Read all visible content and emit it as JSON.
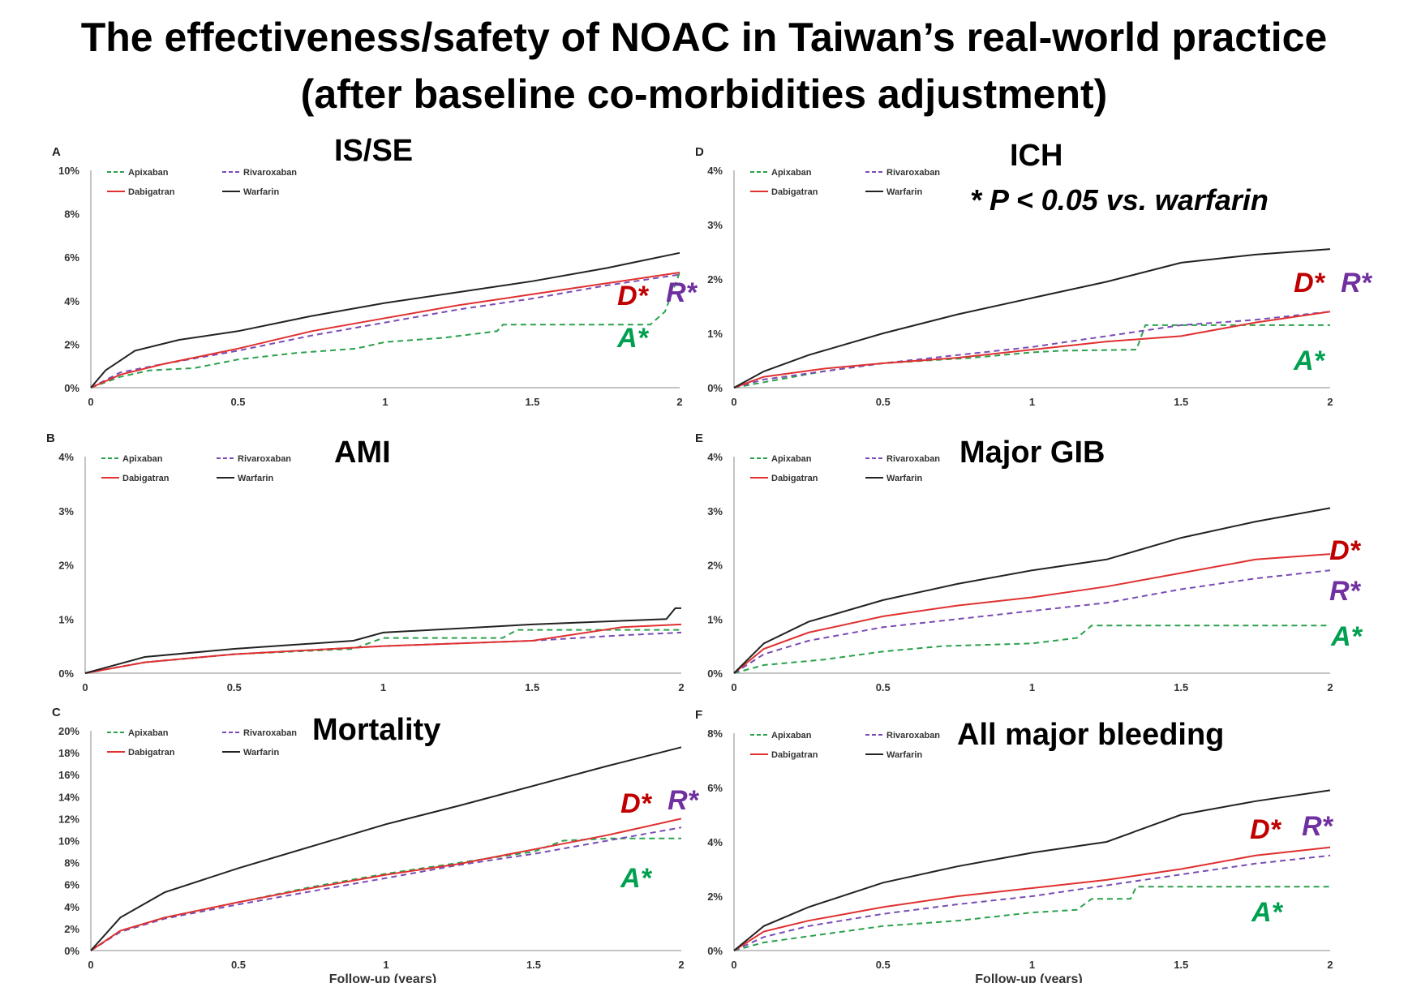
{
  "title_line1": "The effectiveness/safety of  NOAC in Taiwan’s real-world practice",
  "title_line2": "(after baseline co-morbidities adjustment)",
  "pvalue_note": "* P < 0.05 vs. warfarin",
  "xlabel": "Follow-up (years)",
  "colors": {
    "apixaban": "#2aa14b",
    "rivaroxaban": "#7a4bb5",
    "dabigatran": "#e03030",
    "warfarin": "#222222",
    "D_label": "#c00000",
    "R_label": "#7030a0",
    "A_label": "#00a050"
  },
  "chart_data": [
    {
      "type": "line",
      "panel_letter": "A",
      "title": "IS/SE",
      "x_ticks": [
        "0",
        "0.5",
        "1",
        "1.5",
        "2"
      ],
      "xlim": [
        0,
        2
      ],
      "y_ticks": [
        "0%",
        "2%",
        "4%",
        "6%",
        "8%",
        "10%"
      ],
      "ylim": [
        0,
        10
      ],
      "legend": [
        "Apixaban",
        "Rivaroxaban",
        "Dabigatran",
        "Warfarin"
      ],
      "annotations": [
        "D*",
        "R*",
        "A*"
      ],
      "series": [
        {
          "name": "Apixaban",
          "x": [
            0,
            0.1,
            0.2,
            0.35,
            0.5,
            0.7,
            0.9,
            1.0,
            1.2,
            1.38,
            1.4,
            1.7,
            1.9,
            1.95,
            2.0
          ],
          "y": [
            0,
            0.5,
            0.8,
            0.9,
            1.3,
            1.6,
            1.8,
            2.1,
            2.3,
            2.6,
            2.9,
            2.9,
            2.9,
            3.5,
            5.3
          ]
        },
        {
          "name": "Rivaroxaban",
          "x": [
            0,
            0.1,
            0.25,
            0.5,
            0.75,
            1.0,
            1.25,
            1.5,
            1.75,
            2.0
          ],
          "y": [
            0,
            0.7,
            1.1,
            1.7,
            2.4,
            3.0,
            3.6,
            4.1,
            4.7,
            5.2
          ]
        },
        {
          "name": "Dabigatran",
          "x": [
            0,
            0.1,
            0.25,
            0.5,
            0.75,
            1.0,
            1.25,
            1.5,
            1.75,
            2.0
          ],
          "y": [
            0,
            0.6,
            1.1,
            1.8,
            2.6,
            3.2,
            3.8,
            4.3,
            4.8,
            5.3
          ]
        },
        {
          "name": "Warfarin",
          "x": [
            0,
            0.05,
            0.15,
            0.3,
            0.5,
            0.75,
            1.0,
            1.25,
            1.5,
            1.75,
            2.0
          ],
          "y": [
            0,
            0.8,
            1.7,
            2.2,
            2.6,
            3.3,
            3.9,
            4.4,
            4.9,
            5.5,
            6.2
          ]
        }
      ]
    },
    {
      "type": "line",
      "panel_letter": "D",
      "title": "ICH",
      "x_ticks": [
        "0",
        "0.5",
        "1",
        "1.5",
        "2"
      ],
      "xlim": [
        0,
        2
      ],
      "y_ticks": [
        "0%",
        "1%",
        "2%",
        "3%",
        "4%"
      ],
      "ylim": [
        0,
        4
      ],
      "legend": [
        "Apixaban",
        "Rivaroxaban",
        "Dabigatran",
        "Warfarin"
      ],
      "annotations": [
        "D*",
        "R*",
        "A*"
      ],
      "series": [
        {
          "name": "Apixaban",
          "x": [
            0,
            0.1,
            0.3,
            0.5,
            0.8,
            1.0,
            1.1,
            1.35,
            1.38,
            1.6,
            1.8,
            2.0
          ],
          "y": [
            0,
            0.1,
            0.3,
            0.45,
            0.55,
            0.65,
            0.68,
            0.7,
            1.15,
            1.15,
            1.15,
            1.15
          ]
        },
        {
          "name": "Rivaroxaban",
          "x": [
            0,
            0.1,
            0.3,
            0.5,
            0.75,
            1.0,
            1.25,
            1.5,
            1.75,
            2.0
          ],
          "y": [
            0,
            0.15,
            0.3,
            0.45,
            0.6,
            0.75,
            0.95,
            1.15,
            1.25,
            1.4
          ]
        },
        {
          "name": "Dabigatran",
          "x": [
            0,
            0.1,
            0.3,
            0.5,
            0.75,
            1.0,
            1.25,
            1.5,
            1.75,
            2.0
          ],
          "y": [
            0,
            0.2,
            0.35,
            0.45,
            0.55,
            0.7,
            0.85,
            0.95,
            1.2,
            1.4
          ]
        },
        {
          "name": "Warfarin",
          "x": [
            0,
            0.1,
            0.25,
            0.5,
            0.75,
            1.0,
            1.25,
            1.5,
            1.75,
            2.0
          ],
          "y": [
            0,
            0.3,
            0.6,
            1.0,
            1.35,
            1.65,
            1.95,
            2.3,
            2.45,
            2.55
          ]
        }
      ]
    },
    {
      "type": "line",
      "panel_letter": "B",
      "title": "AMI",
      "x_ticks": [
        "0",
        "0.5",
        "1",
        "1.5",
        "2"
      ],
      "xlim": [
        0,
        2
      ],
      "y_ticks": [
        "0%",
        "1%",
        "2%",
        "3%",
        "4%"
      ],
      "ylim": [
        0,
        4
      ],
      "legend": [
        "Apixaban",
        "Rivaroxaban",
        "Dabigatran",
        "Warfarin"
      ],
      "annotations": [],
      "series": [
        {
          "name": "Apixaban",
          "x": [
            0,
            0.2,
            0.5,
            0.9,
            1.0,
            1.4,
            1.45,
            1.8,
            2.0
          ],
          "y": [
            0,
            0.2,
            0.35,
            0.45,
            0.65,
            0.65,
            0.8,
            0.8,
            0.8
          ]
        },
        {
          "name": "Rivaroxaban",
          "x": [
            0,
            0.2,
            0.5,
            1.0,
            1.5,
            1.8,
            2.0
          ],
          "y": [
            0,
            0.2,
            0.35,
            0.5,
            0.6,
            0.7,
            0.75
          ]
        },
        {
          "name": "Dabigatran",
          "x": [
            0,
            0.2,
            0.5,
            1.0,
            1.5,
            1.8,
            2.0
          ],
          "y": [
            0,
            0.2,
            0.35,
            0.5,
            0.6,
            0.85,
            0.9
          ]
        },
        {
          "name": "Warfarin",
          "x": [
            0,
            0.2,
            0.5,
            0.9,
            1.0,
            1.5,
            1.95,
            1.98,
            2.0
          ],
          "y": [
            0,
            0.3,
            0.45,
            0.6,
            0.75,
            0.9,
            1.0,
            1.2,
            1.2
          ]
        }
      ]
    },
    {
      "type": "line",
      "panel_letter": "E",
      "title": "Major GIB",
      "x_ticks": [
        "0",
        "0.5",
        "1",
        "1.5",
        "2"
      ],
      "xlim": [
        0,
        2
      ],
      "y_ticks": [
        "0%",
        "1%",
        "2%",
        "3%",
        "4%"
      ],
      "ylim": [
        0,
        4
      ],
      "legend": [
        "Apixaban",
        "Rivaroxaban",
        "Dabigatran",
        "Warfarin"
      ],
      "annotations": [
        "D*",
        "R*",
        "A*"
      ],
      "series": [
        {
          "name": "Apixaban",
          "x": [
            0,
            0.1,
            0.3,
            0.5,
            0.7,
            1.0,
            1.15,
            1.2,
            1.5,
            2.0
          ],
          "y": [
            0,
            0.15,
            0.25,
            0.4,
            0.5,
            0.55,
            0.65,
            0.88,
            0.88,
            0.88
          ]
        },
        {
          "name": "Rivaroxaban",
          "x": [
            0,
            0.1,
            0.25,
            0.5,
            0.75,
            1.0,
            1.25,
            1.5,
            1.75,
            2.0
          ],
          "y": [
            0,
            0.35,
            0.6,
            0.85,
            1.0,
            1.15,
            1.3,
            1.55,
            1.75,
            1.9
          ]
        },
        {
          "name": "Dabigatran",
          "x": [
            0,
            0.1,
            0.25,
            0.5,
            0.75,
            1.0,
            1.25,
            1.5,
            1.75,
            2.0
          ],
          "y": [
            0,
            0.45,
            0.75,
            1.05,
            1.25,
            1.4,
            1.6,
            1.85,
            2.1,
            2.2
          ]
        },
        {
          "name": "Warfarin",
          "x": [
            0,
            0.1,
            0.25,
            0.5,
            0.75,
            1.0,
            1.25,
            1.5,
            1.75,
            2.0
          ],
          "y": [
            0,
            0.55,
            0.95,
            1.35,
            1.65,
            1.9,
            2.1,
            2.5,
            2.8,
            3.05
          ]
        }
      ]
    },
    {
      "type": "line",
      "panel_letter": "C",
      "title": "Mortality",
      "x_ticks": [
        "0",
        "0.5",
        "1",
        "1.5",
        "2"
      ],
      "xlim": [
        0,
        2
      ],
      "y_ticks": [
        "0%",
        "2%",
        "4%",
        "6%",
        "8%",
        "10%",
        "12%",
        "14%",
        "16%",
        "18%",
        "20%"
      ],
      "ylim": [
        0,
        20
      ],
      "legend": [
        "Apixaban",
        "Rivaroxaban",
        "Dabigatran",
        "Warfarin"
      ],
      "annotations": [
        "D*",
        "R*",
        "A*"
      ],
      "xlabel": "Follow-up (years)",
      "series": [
        {
          "name": "Apixaban",
          "x": [
            0,
            0.1,
            0.25,
            0.5,
            0.75,
            1.0,
            1.25,
            1.5,
            1.6,
            1.75,
            2.0
          ],
          "y": [
            0,
            1.8,
            3.0,
            4.4,
            5.8,
            7.0,
            8.0,
            9.0,
            10.0,
            10.2,
            10.2
          ]
        },
        {
          "name": "Rivaroxaban",
          "x": [
            0,
            0.1,
            0.25,
            0.5,
            0.75,
            1.0,
            1.25,
            1.5,
            1.75,
            2.0
          ],
          "y": [
            0,
            1.7,
            2.9,
            4.2,
            5.4,
            6.6,
            7.8,
            8.8,
            10.0,
            11.2
          ]
        },
        {
          "name": "Dabigatran",
          "x": [
            0,
            0.1,
            0.25,
            0.5,
            0.75,
            1.0,
            1.25,
            1.5,
            1.75,
            2.0
          ],
          "y": [
            0,
            1.8,
            3.0,
            4.4,
            5.7,
            6.9,
            7.9,
            9.2,
            10.5,
            12.0
          ]
        },
        {
          "name": "Warfarin",
          "x": [
            0,
            0.1,
            0.25,
            0.5,
            0.75,
            1.0,
            1.25,
            1.5,
            1.75,
            2.0
          ],
          "y": [
            0,
            3.0,
            5.3,
            7.5,
            9.5,
            11.5,
            13.2,
            15.0,
            16.8,
            18.5
          ]
        }
      ]
    },
    {
      "type": "line",
      "panel_letter": "F",
      "title": "All major bleeding",
      "x_ticks": [
        "0",
        "0.5",
        "1",
        "1.5",
        "2"
      ],
      "xlim": [
        0,
        2
      ],
      "y_ticks": [
        "0%",
        "2%",
        "4%",
        "6%",
        "8%"
      ],
      "ylim": [
        0,
        8
      ],
      "legend": [
        "Apixaban",
        "Rivaroxaban",
        "Dabigatran",
        "Warfarin"
      ],
      "annotations": [
        "D*",
        "R*",
        "A*"
      ],
      "xlabel": "Follow-up (years)",
      "series": [
        {
          "name": "Apixaban",
          "x": [
            0,
            0.1,
            0.3,
            0.5,
            0.75,
            1.0,
            1.15,
            1.2,
            1.33,
            1.35,
            1.6,
            2.0
          ],
          "y": [
            0,
            0.3,
            0.6,
            0.9,
            1.1,
            1.4,
            1.5,
            1.9,
            1.9,
            2.35,
            2.35,
            2.35
          ]
        },
        {
          "name": "Rivaroxaban",
          "x": [
            0,
            0.1,
            0.25,
            0.5,
            0.75,
            1.0,
            1.25,
            1.5,
            1.75,
            2.0
          ],
          "y": [
            0,
            0.5,
            0.9,
            1.35,
            1.7,
            2.0,
            2.4,
            2.8,
            3.2,
            3.5
          ]
        },
        {
          "name": "Dabigatran",
          "x": [
            0,
            0.1,
            0.25,
            0.5,
            0.75,
            1.0,
            1.25,
            1.5,
            1.75,
            2.0
          ],
          "y": [
            0,
            0.7,
            1.1,
            1.6,
            2.0,
            2.3,
            2.6,
            3.0,
            3.5,
            3.8
          ]
        },
        {
          "name": "Warfarin",
          "x": [
            0,
            0.1,
            0.25,
            0.5,
            0.75,
            1.0,
            1.25,
            1.5,
            1.75,
            2.0
          ],
          "y": [
            0,
            0.9,
            1.6,
            2.5,
            3.1,
            3.6,
            4.0,
            5.0,
            5.5,
            5.9
          ]
        }
      ]
    }
  ]
}
